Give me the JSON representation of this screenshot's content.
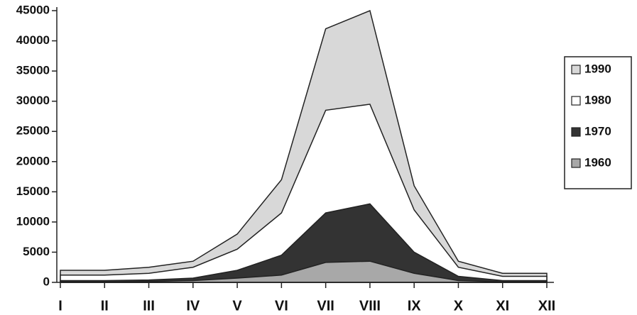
{
  "chart_data": {
    "type": "area",
    "categories": [
      "I",
      "II",
      "III",
      "IV",
      "V",
      "VI",
      "VII",
      "VIII",
      "IX",
      "X",
      "XI",
      "XII"
    ],
    "series": [
      {
        "name": "1990",
        "color": "#d8d8d8",
        "values": [
          2000,
          2000,
          2500,
          3500,
          8000,
          17000,
          42000,
          45000,
          16000,
          3500,
          1500,
          1500
        ]
      },
      {
        "name": "1980",
        "color": "#ffffff",
        "values": [
          1200,
          1200,
          1500,
          2500,
          5500,
          11500,
          28500,
          29500,
          12000,
          2500,
          1000,
          1000
        ]
      },
      {
        "name": "1970",
        "color": "#333333",
        "values": [
          300,
          300,
          400,
          700,
          2000,
          4500,
          11500,
          13000,
          5000,
          1000,
          300,
          300
        ]
      },
      {
        "name": "1960",
        "color": "#a8a8a8",
        "values": [
          100,
          100,
          150,
          300,
          700,
          1200,
          3300,
          3500,
          1500,
          300,
          100,
          100
        ]
      }
    ],
    "ylim": [
      0,
      45000
    ],
    "yticks": [
      0,
      5000,
      10000,
      15000,
      20000,
      25000,
      30000,
      35000,
      40000,
      45000
    ]
  }
}
